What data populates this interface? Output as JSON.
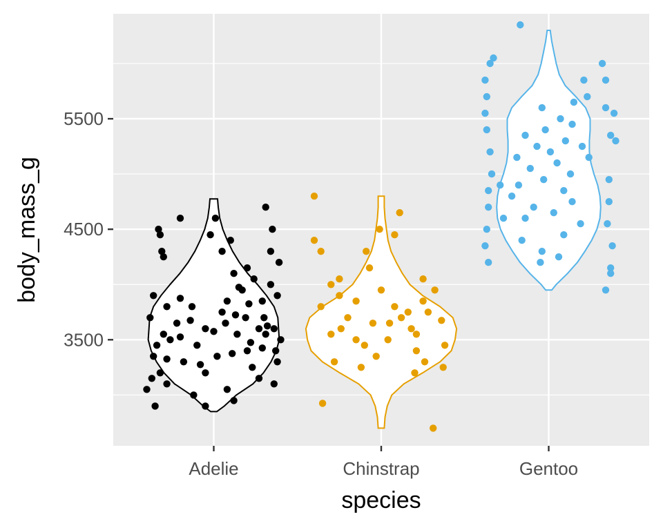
{
  "chart_data": {
    "type": "violin",
    "xlabel": "species",
    "ylabel": "body_mass_g",
    "categories": [
      "Adelie",
      "Chinstrap",
      "Gentoo"
    ],
    "ylim": [
      2540,
      6450
    ],
    "yticks": [
      3500,
      4500,
      5500
    ],
    "ytick_labels": [
      "3500",
      "4500",
      "5500"
    ],
    "grid": true,
    "legend": "none",
    "colors": {
      "Adelie": "#000000",
      "Chinstrap": "#E69F00",
      "Gentoo": "#56B4E9",
      "panel": "#EBEBEB",
      "grid": "#FFFFFF",
      "violin_fill": "#FFFFFF"
    },
    "series": [
      {
        "category": "Adelie",
        "violin_range": [
          2850,
          4775
        ],
        "violin_profile": [
          [
            2850,
            0.04
          ],
          [
            2900,
            0.14
          ],
          [
            3000,
            0.3
          ],
          [
            3100,
            0.52
          ],
          [
            3200,
            0.66
          ],
          [
            3300,
            0.76
          ],
          [
            3400,
            0.83
          ],
          [
            3500,
            0.87
          ],
          [
            3600,
            0.86
          ],
          [
            3700,
            0.85
          ],
          [
            3800,
            0.8
          ],
          [
            3900,
            0.7
          ],
          [
            4000,
            0.58
          ],
          [
            4100,
            0.45
          ],
          [
            4200,
            0.34
          ],
          [
            4300,
            0.25
          ],
          [
            4400,
            0.18
          ],
          [
            4500,
            0.12
          ],
          [
            4600,
            0.08
          ],
          [
            4700,
            0.06
          ],
          [
            4775,
            0.05
          ]
        ],
        "points": [
          [
            2900,
            -0.35
          ],
          [
            3050,
            -0.4
          ],
          [
            3200,
            -0.32
          ],
          [
            3100,
            0.36
          ],
          [
            3300,
            0.38
          ],
          [
            3400,
            0.37
          ],
          [
            3500,
            0.4
          ],
          [
            3550,
            0.31
          ],
          [
            3600,
            0.36
          ],
          [
            3700,
            0.3
          ],
          [
            3900,
            0.38
          ],
          [
            4000,
            0.34
          ],
          [
            4200,
            0.39
          ],
          [
            4300,
            0.34
          ],
          [
            4500,
            0.35
          ],
          [
            4700,
            0.31
          ],
          [
            4500,
            -0.33
          ],
          [
            4300,
            -0.31
          ],
          [
            4250,
            -0.3
          ],
          [
            4450,
            -0.32
          ],
          [
            4600,
            -0.2
          ],
          [
            4600,
            0.01
          ],
          [
            4450,
            -0.02
          ],
          [
            4400,
            0.1
          ],
          [
            4300,
            0.05
          ],
          [
            4150,
            0.2
          ],
          [
            4100,
            0.12
          ],
          [
            3950,
            0.17
          ],
          [
            3850,
            0.08
          ],
          [
            3800,
            -0.13
          ],
          [
            3750,
            0.05
          ],
          [
            3700,
            0.19
          ],
          [
            3650,
            -0.22
          ],
          [
            3600,
            -0.05
          ],
          [
            3550,
            0.14
          ],
          [
            3500,
            -0.26
          ],
          [
            3450,
            -0.1
          ],
          [
            3400,
            0.2
          ],
          [
            3350,
            0.02
          ],
          [
            3300,
            -0.18
          ],
          [
            3250,
            0.23
          ],
          [
            3200,
            -0.05
          ],
          [
            3150,
            0.27
          ],
          [
            3100,
            -0.28
          ],
          [
            3050,
            0.08
          ],
          [
            3000,
            -0.12
          ],
          [
            2950,
            0.12
          ],
          [
            2900,
            -0.05
          ],
          [
            3600,
            0.27
          ],
          [
            3800,
            -0.28
          ],
          [
            3900,
            -0.36
          ],
          [
            3700,
            -0.38
          ],
          [
            3475,
            0.22
          ],
          [
            3325,
            -0.28
          ],
          [
            3425,
            0.29
          ],
          [
            3575,
            0.0
          ],
          [
            3675,
            -0.14
          ],
          [
            3725,
            0.13
          ],
          [
            3525,
            -0.2
          ],
          [
            3375,
            0.11
          ],
          [
            3275,
            -0.08
          ],
          [
            3825,
            0.21
          ],
          [
            3875,
            -0.2
          ],
          [
            3975,
            0.15
          ],
          [
            4050,
            0.24
          ],
          [
            3625,
            0.32
          ],
          [
            3450,
            -0.34
          ],
          [
            3150,
            -0.37
          ],
          [
            3350,
            -0.36
          ],
          [
            3850,
            0.29
          ],
          [
            3550,
            -0.3
          ],
          [
            3650,
            0.07
          ]
        ]
      },
      {
        "category": "Chinstrap",
        "violin_range": [
          2700,
          4800
        ],
        "violin_profile": [
          [
            2700,
            0.04
          ],
          [
            2800,
            0.05
          ],
          [
            2900,
            0.08
          ],
          [
            3000,
            0.14
          ],
          [
            3100,
            0.3
          ],
          [
            3200,
            0.55
          ],
          [
            3300,
            0.78
          ],
          [
            3400,
            0.93
          ],
          [
            3500,
            0.98
          ],
          [
            3600,
            1.0
          ],
          [
            3700,
            0.95
          ],
          [
            3800,
            0.78
          ],
          [
            3900,
            0.55
          ],
          [
            4000,
            0.38
          ],
          [
            4100,
            0.28
          ],
          [
            4200,
            0.2
          ],
          [
            4300,
            0.13
          ],
          [
            4400,
            0.09
          ],
          [
            4500,
            0.07
          ],
          [
            4600,
            0.05
          ],
          [
            4700,
            0.04
          ],
          [
            4800,
            0.04
          ]
        ],
        "points": [
          [
            4800,
            -0.4
          ],
          [
            4400,
            -0.4
          ],
          [
            4300,
            -0.36
          ],
          [
            2925,
            -0.35
          ],
          [
            2700,
            0.31
          ],
          [
            3250,
            0.37
          ],
          [
            3450,
            0.38
          ],
          [
            3675,
            0.36
          ],
          [
            3950,
            0.32
          ],
          [
            4050,
            0.25
          ],
          [
            4500,
            -0.01
          ],
          [
            4450,
            0.08
          ],
          [
            4650,
            0.11
          ],
          [
            4300,
            -0.09
          ],
          [
            4150,
            -0.07
          ],
          [
            4050,
            -0.25
          ],
          [
            3950,
            0.0
          ],
          [
            3850,
            -0.15
          ],
          [
            3800,
            -0.36
          ],
          [
            3750,
            0.16
          ],
          [
            3700,
            -0.2
          ],
          [
            3650,
            -0.05
          ],
          [
            3600,
            0.18
          ],
          [
            3550,
            -0.3
          ],
          [
            3500,
            0.04
          ],
          [
            3450,
            -0.1
          ],
          [
            3400,
            0.21
          ],
          [
            3350,
            -0.03
          ],
          [
            3300,
            0.26
          ],
          [
            3250,
            -0.12
          ],
          [
            3200,
            0.2
          ],
          [
            3300,
            -0.28
          ],
          [
            3500,
            -0.15
          ],
          [
            3600,
            -0.24
          ],
          [
            3700,
            0.12
          ],
          [
            3800,
            0.08
          ],
          [
            3900,
            -0.25
          ],
          [
            4000,
            -0.3
          ],
          [
            3750,
            0.28
          ],
          [
            3550,
            0.21
          ],
          [
            3650,
            0.05
          ],
          [
            3850,
            0.25
          ]
        ]
      },
      {
        "category": "Gentoo",
        "violin_range": [
          3950,
          6300
        ],
        "violin_profile": [
          [
            3950,
            0.04
          ],
          [
            4000,
            0.1
          ],
          [
            4100,
            0.25
          ],
          [
            4200,
            0.38
          ],
          [
            4300,
            0.48
          ],
          [
            4400,
            0.57
          ],
          [
            4500,
            0.64
          ],
          [
            4600,
            0.68
          ],
          [
            4700,
            0.69
          ],
          [
            4800,
            0.68
          ],
          [
            4900,
            0.65
          ],
          [
            5000,
            0.6
          ],
          [
            5100,
            0.56
          ],
          [
            5200,
            0.54
          ],
          [
            5300,
            0.54
          ],
          [
            5400,
            0.55
          ],
          [
            5500,
            0.55
          ],
          [
            5600,
            0.49
          ],
          [
            5700,
            0.36
          ],
          [
            5800,
            0.22
          ],
          [
            5900,
            0.14
          ],
          [
            6000,
            0.1
          ],
          [
            6100,
            0.07
          ],
          [
            6200,
            0.04
          ],
          [
            6300,
            0.02
          ]
        ],
        "points": [
          [
            6350,
            -0.17
          ],
          [
            6050,
            -0.33
          ],
          [
            6000,
            -0.35
          ],
          [
            5850,
            -0.38
          ],
          [
            5700,
            -0.37
          ],
          [
            5550,
            -0.38
          ],
          [
            5400,
            -0.37
          ],
          [
            5200,
            -0.35
          ],
          [
            5000,
            -0.34
          ],
          [
            4850,
            -0.36
          ],
          [
            4700,
            -0.36
          ],
          [
            4500,
            -0.37
          ],
          [
            4350,
            -0.38
          ],
          [
            4200,
            -0.36
          ],
          [
            6000,
            0.32
          ],
          [
            5850,
            0.34
          ],
          [
            5600,
            0.34
          ],
          [
            5550,
            0.39
          ],
          [
            5350,
            0.37
          ],
          [
            5300,
            0.4
          ],
          [
            5150,
            0.24
          ],
          [
            4950,
            0.36
          ],
          [
            4750,
            0.36
          ],
          [
            4550,
            0.35
          ],
          [
            4350,
            0.38
          ],
          [
            4150,
            0.37
          ],
          [
            4100,
            0.37
          ],
          [
            3950,
            0.34
          ],
          [
            5850,
            0.21
          ],
          [
            5700,
            0.23
          ],
          [
            5600,
            -0.04
          ],
          [
            5500,
            0.07
          ],
          [
            5450,
            0.14
          ],
          [
            5400,
            -0.02
          ],
          [
            5350,
            -0.14
          ],
          [
            5300,
            0.1
          ],
          [
            5250,
            -0.07
          ],
          [
            5200,
            0.01
          ],
          [
            5150,
            -0.19
          ],
          [
            5100,
            0.05
          ],
          [
            5050,
            -0.11
          ],
          [
            5000,
            0.13
          ],
          [
            4950,
            -0.03
          ],
          [
            4900,
            -0.18
          ],
          [
            4850,
            0.09
          ],
          [
            4800,
            -0.22
          ],
          [
            4750,
            0.14
          ],
          [
            4700,
            -0.09
          ],
          [
            4650,
            0.03
          ],
          [
            4600,
            -0.14
          ],
          [
            4550,
            0.19
          ],
          [
            4450,
            0.09
          ],
          [
            4400,
            -0.16
          ],
          [
            4300,
            -0.04
          ],
          [
            4250,
            0.06
          ],
          [
            4200,
            -0.05
          ],
          [
            5650,
            0.15
          ],
          [
            5250,
            0.2
          ],
          [
            4900,
            -0.29
          ],
          [
            4600,
            -0.27
          ]
        ]
      }
    ]
  }
}
